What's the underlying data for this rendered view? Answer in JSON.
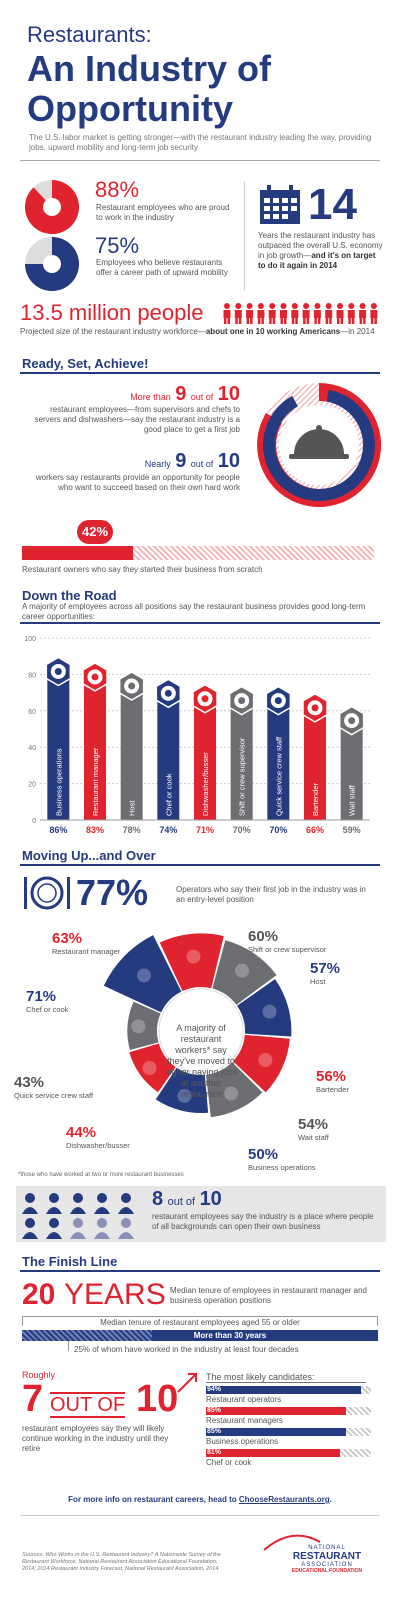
{
  "header": {
    "kicker": "Restaurants:",
    "title_line1": "An Industry of",
    "title_line2": "Opportunity",
    "intro": "The U.S. labor market is getting stronger—with the restaurant industry leading the way, providing jobs, upward mobility and long-term job security"
  },
  "stats": {
    "proud": {
      "pct": "88%",
      "text": "Restaurant employees who are proud to work in the industry",
      "value": 0.88
    },
    "career": {
      "pct": "75%",
      "text": "Employees who believe restaurants offer a career path of upward mobility",
      "value": 0.75
    },
    "years": {
      "num": "14",
      "text_plain": "Years the restaurant industry has outpaced the overall U.S. economy in job growth—",
      "text_bold": "and it's on target to do it again in 2014"
    }
  },
  "workforce": {
    "headline": "13.5 million people",
    "text_plain": "Projected size of the restaurant industry workforce—",
    "text_bold": "about one in 10 working Americans",
    "text_tail": "—in 2014"
  },
  "ready": {
    "title": "Ready, Set, Achieve!",
    "s1_pre": "More than",
    "s1_num": "9",
    "s1_of": "out of",
    "s1_den": "10",
    "s1_text": "restaurant employees—from supervisors and chefs to servers and dishwashers—say the restaurant industry is a good place to get a first job",
    "s2_pre": "Nearly",
    "s2_num": "9",
    "s2_of": "out of",
    "s2_den": "10",
    "s2_text": "workers say restaurants provide an opportunity for people who want to succeed based on their own hard work",
    "owners_pct": "42%",
    "owners_value": 0.42,
    "owners_text": "Restaurant owners who say they started their business from scratch"
  },
  "road": {
    "title": "Down the Road",
    "subtitle": "A majority of employees across all positions say the restaurant business provides good long-term career opportunities:"
  },
  "chart_data": {
    "type": "bar",
    "title": "",
    "xlabel": "",
    "ylabel": "",
    "ylim": [
      0,
      100
    ],
    "yticks": [
      "0",
      "20",
      "40",
      "60",
      "80",
      "100"
    ],
    "categories": [
      "Business operations",
      "Restaurant manager",
      "Host",
      "Chef or cook",
      "Dishwasher/busser",
      "Shift or crew supervisor",
      "Quick service crew staff",
      "Bartender",
      "Wait staff"
    ],
    "values": [
      86,
      83,
      78,
      74,
      71,
      70,
      70,
      66,
      59
    ],
    "labels": [
      "86%",
      "83%",
      "78%",
      "74%",
      "71%",
      "70%",
      "70%",
      "66%",
      "59%"
    ],
    "colors": [
      "#253b80",
      "#e0242f",
      "#6d6e71",
      "#253b80",
      "#e0242f",
      "#6d6e71",
      "#253b80",
      "#e0242f",
      "#6d6e71"
    ]
  },
  "moving": {
    "title": "Moving Up...and Over",
    "pct": "77%",
    "text": "Operators who say their first job in the industry was in an entry-level position",
    "center": "A majority of restaurant workers* say they've moved to higher paying jobs at another restaurant",
    "items": [
      {
        "pct": "63%",
        "label": "Restaurant manager"
      },
      {
        "pct": "60%",
        "label": "Shift or crew supervisor"
      },
      {
        "pct": "57%",
        "label": "Host"
      },
      {
        "pct": "56%",
        "label": "Bartender"
      },
      {
        "pct": "54%",
        "label": "Wait staff"
      },
      {
        "pct": "50%",
        "label": "Business operations"
      },
      {
        "pct": "44%",
        "label": "Dishwasher/busser"
      },
      {
        "pct": "43%",
        "label": "Quick service crew staff"
      },
      {
        "pct": "71%",
        "label": "Chef or cook"
      }
    ],
    "footnote": "*those who have worked at two or more restaurant businesses",
    "eight_num": "8",
    "eight_of": "out of",
    "eight_den": "10",
    "eight_text": "restaurant employees say the industry is a place where people of all backgrounds can open their own business"
  },
  "finish": {
    "title": "The Finish Line",
    "years_num": "20",
    "years_word": "YEARS",
    "years_text": "Median tenure of employees in restaurant manager and business operation positions",
    "older_text": "Median tenure of restaurant employees aged 55 or older",
    "older_value": "More than 30 years",
    "quarter_text": "25% of whom have worked in the industry at least four decades",
    "roughly": "Roughly",
    "seven": "7",
    "out_of": "OUT OF",
    "ten": "10",
    "seven_text": "restaurant employees say they will likely continue working in the industry until they retire",
    "candidates_title": "The most likely candidates:",
    "candidates": [
      {
        "pct": "94%",
        "label": "Restaurant operators",
        "value": 94,
        "color": "#253b80"
      },
      {
        "pct": "85%",
        "label": "Restaurant managers",
        "value": 85,
        "color": "#e0242f"
      },
      {
        "pct": "85%",
        "label": "Business operations",
        "value": 85,
        "color": "#253b80"
      },
      {
        "pct": "81%",
        "label": "Chef or cook",
        "value": 81,
        "color": "#e0242f"
      }
    ]
  },
  "footer": {
    "more_pre": "For more info on restaurant careers, head to ",
    "more_link": "ChooseRestaurants.org",
    "more_post": ".",
    "sources": "Sources: Who Works in the U.S. Restaurant Industry? A Nationwide Survey of the Restaurant Workforce, National Restaurant Association Educational Foundation, 2014; 2014 Restaurant Industry Forecast, National Restaurant Association, 2014",
    "logo_line1": "NATIONAL",
    "logo_line2": "RESTAURANT",
    "logo_line3": "ASSOCIATION",
    "logo_line4": "EDUCATIONAL FOUNDATION"
  }
}
